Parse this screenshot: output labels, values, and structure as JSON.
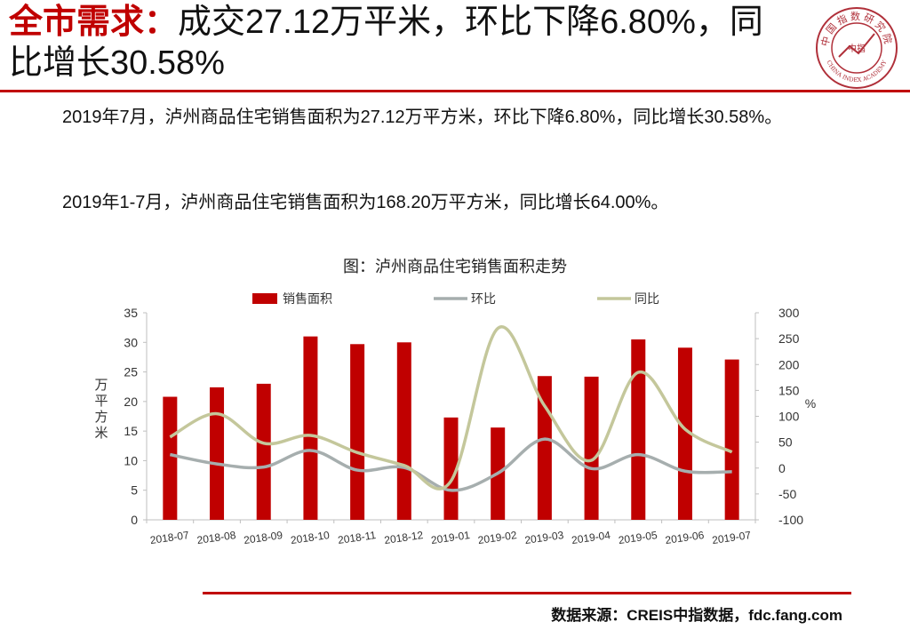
{
  "header": {
    "title_highlight": "全市需求：",
    "title_rest": "成交27.12万平米，环比下降6.80%，同比增长30.58%",
    "logo": {
      "icon": "china-index-academy-seal",
      "text_top": "中国指数研究院",
      "text_bottom": "CHINA INDEX ACADEMY",
      "center": "中指"
    }
  },
  "body": {
    "para1": "2019年7月，泸州商品住宅销售面积为27.12万平方米，环比下降6.80%，同比增长30.58%。",
    "para2": "2019年1-7月，泸州商品住宅销售面积为168.20万平方米，同比增长64.00%。"
  },
  "chart_title": "图：泸州商品住宅销售面积走势",
  "chart_data": {
    "type": "bar",
    "categories": [
      "2018-07",
      "2018-08",
      "2018-09",
      "2018-10",
      "2018-11",
      "2018-12",
      "2019-01",
      "2019-02",
      "2019-03",
      "2019-04",
      "2019-05",
      "2019-06",
      "2019-07"
    ],
    "series": [
      {
        "name": "销售面积",
        "type": "bar",
        "axis": "left",
        "color": "#c00000",
        "values": [
          20.8,
          22.4,
          23.0,
          31.0,
          29.7,
          30.0,
          17.3,
          15.6,
          24.3,
          24.2,
          30.5,
          29.1,
          27.1
        ]
      },
      {
        "name": "环比",
        "type": "line",
        "axis": "right",
        "color": "#a6aeae",
        "values": [
          26,
          8,
          2,
          34,
          -4,
          1,
          -43,
          -10,
          56,
          -1,
          26,
          -6,
          -7
        ]
      },
      {
        "name": "同比",
        "type": "line",
        "axis": "right",
        "color": "#c4c79b",
        "values": [
          60,
          105,
          48,
          63,
          30,
          5,
          -25,
          270,
          120,
          15,
          185,
          75,
          31
        ]
      }
    ],
    "ylabel": "万平方米",
    "y2label": "%",
    "ylim": [
      0,
      35
    ],
    "yticks": [
      "0",
      "5",
      "10",
      "15",
      "20",
      "25",
      "30",
      "35"
    ],
    "y2lim": [
      -100,
      300
    ],
    "y2ticks": [
      "-100",
      "-50",
      "0",
      "50",
      "100",
      "150",
      "200",
      "250",
      "300"
    ],
    "grid": false,
    "legend": "top-center"
  },
  "footer": {
    "source": "数据来源：CREIS中指数据，fdc.fang.com"
  }
}
